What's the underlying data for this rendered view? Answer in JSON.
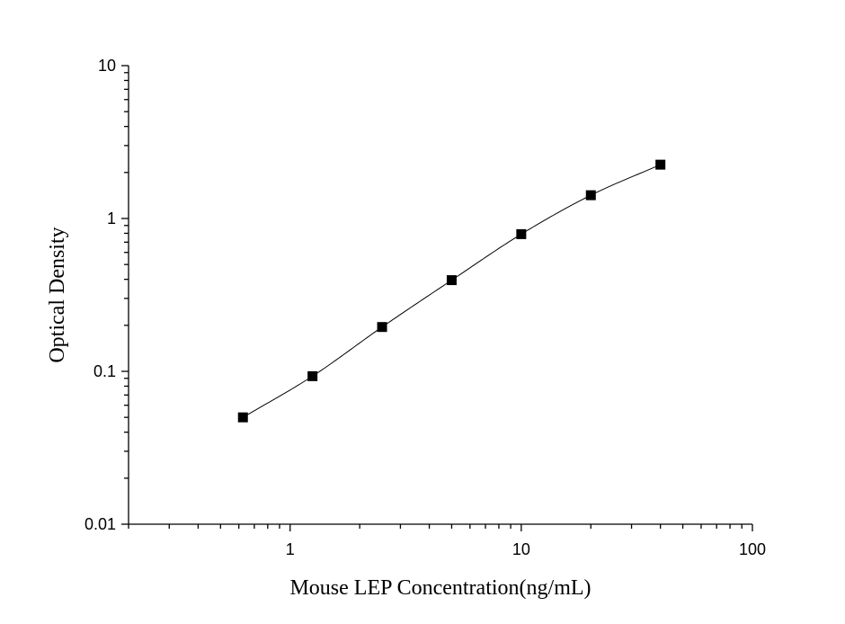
{
  "chart_data": {
    "type": "scatter",
    "xlabel": "Mouse LEP Concentration(ng/mL)",
    "ylabel": "Optical Density",
    "xscale": "log",
    "yscale": "log",
    "xlim": [
      0.2,
      100
    ],
    "ylim": [
      0.01,
      10
    ],
    "xticks": [
      1,
      10,
      100
    ],
    "xtick_labels": [
      "1",
      "10",
      "100"
    ],
    "yticks": [
      0.01,
      0.1,
      1,
      10
    ],
    "ytick_labels": [
      "0.01",
      "0.1",
      "1",
      "10"
    ],
    "grid": false,
    "legend": false,
    "marker": "square",
    "fit_curve": true,
    "series": [
      {
        "x": [
          0.625,
          1.25,
          2.5,
          5,
          10,
          20,
          40
        ],
        "y": [
          0.05,
          0.093,
          0.195,
          0.395,
          0.79,
          1.42,
          2.25
        ]
      }
    ]
  }
}
